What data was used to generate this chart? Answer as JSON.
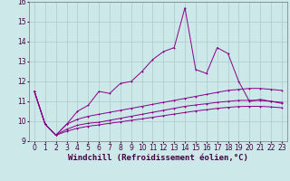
{
  "xlabel": "Windchill (Refroidissement éolien,°C)",
  "background_color": "#cce8e8",
  "grid_color": "#aacccc",
  "line_color": "#880088",
  "xlim": [
    -0.5,
    23.5
  ],
  "ylim": [
    9,
    16
  ],
  "xticks": [
    0,
    1,
    2,
    3,
    4,
    5,
    6,
    7,
    8,
    9,
    10,
    11,
    12,
    13,
    14,
    15,
    16,
    17,
    18,
    19,
    20,
    21,
    22,
    23
  ],
  "yticks": [
    9,
    10,
    11,
    12,
    13,
    14,
    15,
    16
  ],
  "series1_x": [
    0,
    1,
    2,
    3,
    4,
    5,
    6,
    7,
    8,
    9,
    10,
    11,
    12,
    13,
    14,
    15,
    16,
    17,
    18,
    19,
    20,
    21,
    22,
    23
  ],
  "series1_y": [
    11.5,
    9.85,
    9.3,
    9.85,
    10.5,
    10.8,
    11.5,
    11.4,
    11.9,
    12.0,
    12.5,
    13.1,
    13.5,
    13.7,
    15.7,
    12.6,
    12.4,
    13.7,
    13.4,
    12.0,
    11.0,
    11.1,
    11.0,
    10.9
  ],
  "series2_x": [
    0,
    1,
    2,
    3,
    4,
    5,
    6,
    7,
    8,
    9,
    10,
    11,
    12,
    13,
    14,
    15,
    16,
    17,
    18,
    19,
    20,
    21,
    22,
    23
  ],
  "series2_y": [
    11.5,
    9.85,
    9.3,
    9.85,
    10.1,
    10.25,
    10.35,
    10.45,
    10.55,
    10.65,
    10.75,
    10.85,
    10.95,
    11.05,
    11.15,
    11.25,
    11.35,
    11.45,
    11.55,
    11.6,
    11.65,
    11.65,
    11.6,
    11.55
  ],
  "series3_x": [
    0,
    1,
    2,
    3,
    4,
    5,
    6,
    7,
    8,
    9,
    10,
    11,
    12,
    13,
    14,
    15,
    16,
    17,
    18,
    19,
    20,
    21,
    22,
    23
  ],
  "series3_y": [
    11.5,
    9.85,
    9.3,
    9.6,
    9.8,
    9.9,
    9.95,
    10.05,
    10.15,
    10.25,
    10.35,
    10.45,
    10.55,
    10.65,
    10.75,
    10.82,
    10.88,
    10.95,
    11.0,
    11.05,
    11.05,
    11.05,
    11.0,
    10.95
  ],
  "series4_x": [
    0,
    1,
    2,
    3,
    4,
    5,
    6,
    7,
    8,
    9,
    10,
    11,
    12,
    13,
    14,
    15,
    16,
    17,
    18,
    19,
    20,
    21,
    22,
    23
  ],
  "series4_y": [
    11.5,
    9.85,
    9.3,
    9.5,
    9.65,
    9.75,
    9.82,
    9.9,
    9.97,
    10.05,
    10.12,
    10.2,
    10.28,
    10.36,
    10.44,
    10.52,
    10.58,
    10.65,
    10.7,
    10.74,
    10.75,
    10.75,
    10.72,
    10.68
  ],
  "xlabel_fontsize": 6.5,
  "tick_fontsize": 5.5
}
